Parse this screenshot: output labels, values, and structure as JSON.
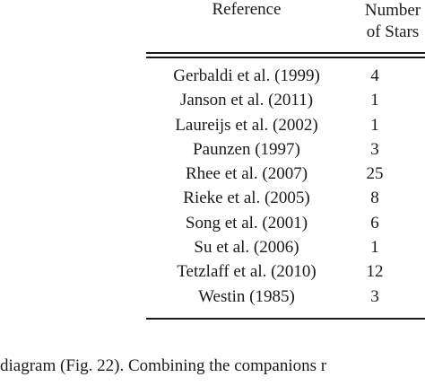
{
  "table": {
    "headers": {
      "reference": "Reference",
      "number_line1": "Number",
      "number_line2": "of Stars"
    },
    "rows": [
      {
        "reference": "Gerbaldi et al. (1999)",
        "stars": "4"
      },
      {
        "reference": "Janson et al. (2011)",
        "stars": "1"
      },
      {
        "reference": "Laureijs et al. (2002)",
        "stars": "1"
      },
      {
        "reference": "Paunzen (1997)",
        "stars": "3"
      },
      {
        "reference": "Rhee et al. (2007)",
        "stars": "25"
      },
      {
        "reference": "Rieke et al. (2005)",
        "stars": "8"
      },
      {
        "reference": "Song et al. (2001)",
        "stars": "6"
      },
      {
        "reference": "Su et al. (2006)",
        "stars": "1"
      },
      {
        "reference": "Tetzlaff et al. (2010)",
        "stars": "12"
      },
      {
        "reference": "Westin (1985)",
        "stars": "3"
      }
    ]
  },
  "caption": "diagram (Fig. 22). Combining the companions r"
}
